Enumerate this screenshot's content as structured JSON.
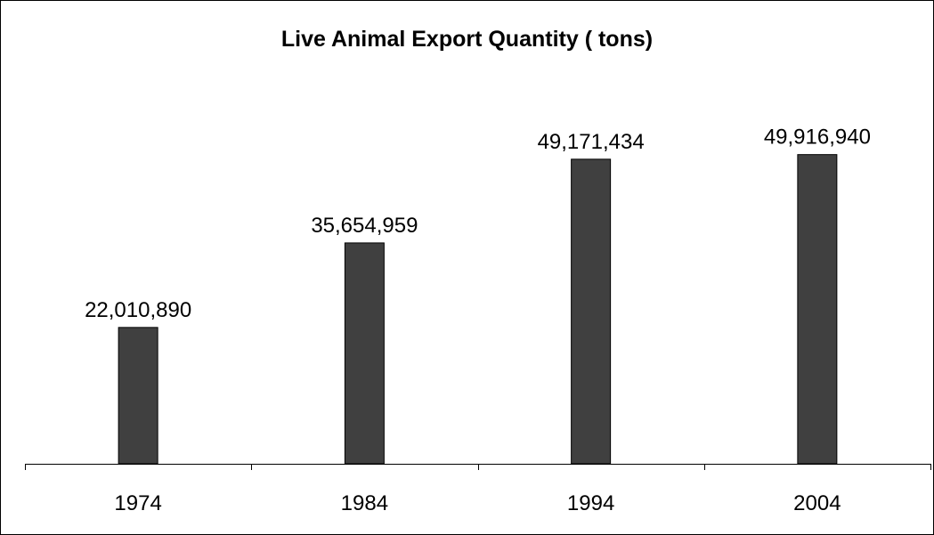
{
  "chart_data": {
    "type": "bar",
    "title": "Live Animal Export Quantity ( tons)",
    "categories": [
      "1974",
      "1984",
      "1994",
      "2004"
    ],
    "values": [
      22010890,
      35654959,
      49171434,
      49916940
    ],
    "data_labels": [
      "22,010,890",
      "35,654,959",
      "49,171,434",
      "49,916,940"
    ],
    "xlabel": "",
    "ylabel": "",
    "ylim": [
      0,
      60000000
    ],
    "grid": false,
    "legend": "none",
    "colors": {
      "bar_fill": "#404040",
      "bar_stroke": "#000000",
      "axis": "#000000",
      "background": "#ffffff"
    }
  }
}
